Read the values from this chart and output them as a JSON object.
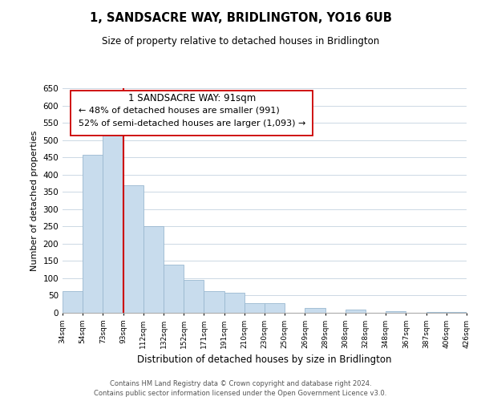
{
  "title": "1, SANDSACRE WAY, BRIDLINGTON, YO16 6UB",
  "subtitle": "Size of property relative to detached houses in Bridlington",
  "xlabel": "Distribution of detached houses by size in Bridlington",
  "ylabel": "Number of detached properties",
  "bar_heights": [
    63,
    457,
    521,
    370,
    250,
    140,
    95,
    62,
    58,
    28,
    29,
    0,
    13,
    0,
    10,
    0,
    5,
    0,
    3,
    2
  ],
  "bar_labels": [
    "34sqm",
    "54sqm",
    "73sqm",
    "93sqm",
    "112sqm",
    "132sqm",
    "152sqm",
    "171sqm",
    "191sqm",
    "210sqm",
    "230sqm",
    "250sqm",
    "269sqm",
    "289sqm",
    "308sqm",
    "328sqm",
    "348sqm",
    "367sqm",
    "387sqm",
    "406sqm",
    "426sqm"
  ],
  "bar_color": "#c8dced",
  "bar_edge_color": "#9ab8d0",
  "vline_color": "#cc0000",
  "vline_x": 3,
  "ylim": [
    0,
    650
  ],
  "yticks": [
    0,
    50,
    100,
    150,
    200,
    250,
    300,
    350,
    400,
    450,
    500,
    550,
    600,
    650
  ],
  "annotation_line1": "1 SANDSACRE WAY: 91sqm",
  "annotation_line2": "← 48% of detached houses are smaller (991)",
  "annotation_line3": "52% of semi-detached houses are larger (1,093) →",
  "footer_text": "Contains HM Land Registry data © Crown copyright and database right 2024.\nContains public sector information licensed under the Open Government Licence v3.0.",
  "background_color": "#ffffff",
  "grid_color": "#ccd8e4"
}
